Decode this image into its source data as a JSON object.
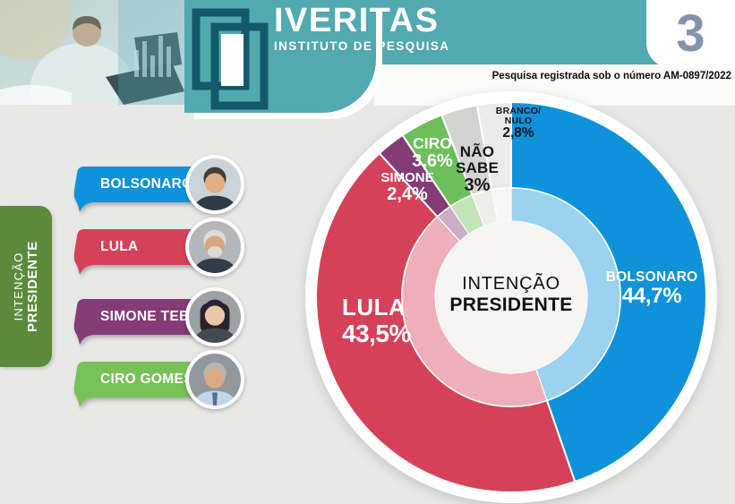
{
  "header": {
    "brand": "IVERITAS",
    "brand_subtitle": "INSTITUTO DE PESQUISA",
    "page_number": "3",
    "registration": "Pesquisa registrada sob o número AM-0897/2022"
  },
  "sidebar": {
    "tab": {
      "line1": "INTENÇÃO",
      "line2": "PRESIDENTE"
    },
    "candidates": [
      {
        "name": "BOLSONARO",
        "color": "#0e93da",
        "avatar": {
          "bg": "#c9d3d9",
          "top": "#2e3a44",
          "hair": "#473c33",
          "skin": "#e3ad85"
        }
      },
      {
        "name": "LULA",
        "color": "#d6415a",
        "avatar": {
          "bg": "#b3b7ba",
          "top": "#333d49",
          "hair": "#dedcd7",
          "skin": "#d8a57e",
          "beard": "#dcdad5"
        }
      },
      {
        "name": "SIMONE TEBET",
        "color": "#833c76",
        "avatar": {
          "bg": "#9aa1a7",
          "top": "#454a52",
          "hair": "#27232a",
          "skin": "#eac6ab",
          "longHair": true
        }
      },
      {
        "name": "CIRO GOMES",
        "color": "#78c156",
        "avatar": {
          "bg": "#90989e",
          "top": "#c3d6e7",
          "hair": "#b7b5b0",
          "skin": "#d9ab84",
          "tie": "#4d6f96"
        }
      }
    ]
  },
  "chart_data": {
    "type": "pie",
    "subtype": "donut",
    "title_line1": "INTENÇÃO",
    "title_line2": "PRESIDENTE",
    "units": "%",
    "start_angle_deg": 0,
    "direction": "clockwise",
    "segments": [
      {
        "label": "BOLSONARO",
        "value": 44.7,
        "display": "44,7%",
        "color": "#0e93da"
      },
      {
        "label": "LULA",
        "value": 43.5,
        "display": "43,5%",
        "color": "#d6415a"
      },
      {
        "label": "SIMONE",
        "value": 2.4,
        "display": "2,4%",
        "color": "#833c76"
      },
      {
        "label": "CIRO",
        "value": 3.6,
        "display": "3,6%",
        "color": "#6cbf59"
      },
      {
        "label": "NÃO SABE",
        "value": 3.0,
        "display": "3%",
        "color": "#d3d3d1",
        "label_lines": [
          "NÃO",
          "SABE"
        ]
      },
      {
        "label": "BRANCO/NULO",
        "value": 2.8,
        "display": "2,8%",
        "color": "#ecebe9",
        "label_lines": [
          "BRANCO/",
          "NULO"
        ]
      }
    ]
  },
  "theme": {
    "teal": "#52a9b0",
    "teal_dark": "#14596b",
    "page_bg": "#e8e8e7",
    "tab_green": "#5c8a3d",
    "page_number_color": "#8493ad",
    "inner_ring_opacity": 0.42
  }
}
